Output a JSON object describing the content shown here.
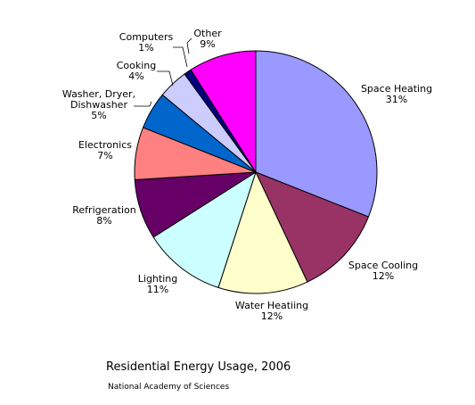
{
  "chart_data": {
    "type": "pie",
    "title": "Residential Energy Usage, 2006",
    "source": "National Academy of Sciences",
    "slices": [
      {
        "label": "Space Heating",
        "lines": [
          "Space Heating",
          "31%"
        ],
        "value": 31,
        "color": "#9999ff"
      },
      {
        "label": "Space Cooling",
        "lines": [
          "Space Cooling",
          "12%"
        ],
        "value": 12,
        "color": "#993366"
      },
      {
        "label": "Water Heatiing",
        "lines": [
          "Water Heatiing",
          "12%"
        ],
        "value": 12,
        "color": "#ffffcc"
      },
      {
        "label": "Lighting",
        "lines": [
          "Lighting",
          "11%"
        ],
        "value": 11,
        "color": "#ccffff"
      },
      {
        "label": "Refrigeration",
        "lines": [
          "Refrigeration",
          "8%"
        ],
        "value": 8,
        "color": "#660066"
      },
      {
        "label": "Electronics",
        "lines": [
          "Electronics",
          "7%"
        ],
        "value": 7,
        "color": "#ff8080"
      },
      {
        "label": "Washer, Dryer, Dishwasher",
        "lines": [
          "Washer, Dryer,",
          "Dishwasher",
          "5%"
        ],
        "value": 5,
        "color": "#0066cc"
      },
      {
        "label": "Cooking",
        "lines": [
          "Cooking",
          "4%"
        ],
        "value": 4,
        "color": "#ccccff"
      },
      {
        "label": "Computers",
        "lines": [
          "Computers",
          "1%"
        ],
        "value": 1,
        "color": "#000080"
      },
      {
        "label": "Other",
        "lines": [
          "Other",
          "9%"
        ],
        "value": 9,
        "color": "#ff00ff"
      }
    ]
  }
}
